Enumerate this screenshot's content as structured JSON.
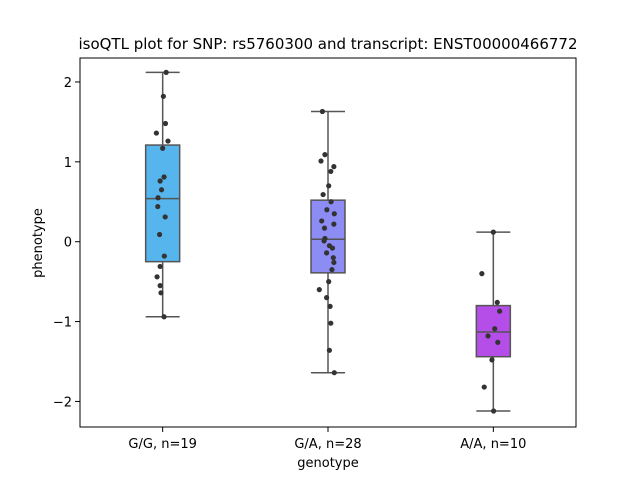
{
  "chart_data": {
    "type": "box",
    "title": "isoQTL plot for SNP: rs5760300 and transcript: ENST00000466772",
    "xlabel": "genotype",
    "ylabel": "phenotype",
    "ylim": [
      -2.32,
      2.3
    ],
    "yticks": [
      2,
      1,
      0,
      -1,
      -2
    ],
    "ytick_labels": [
      "2",
      "1",
      "0",
      "−1",
      "−2"
    ],
    "categories": [
      "G/G, n=19",
      "G/A, n=28",
      "A/A, n=10"
    ],
    "boxes": [
      {
        "label": "G/G, n=19",
        "color": "#55b5ec",
        "whisker_low": -0.94,
        "q1": -0.25,
        "median": 0.54,
        "q3": 1.21,
        "whisker_high": 2.12,
        "points": [
          {
            "y": 2.12,
            "j": 0.25
          },
          {
            "y": 1.82,
            "j": 0.05
          },
          {
            "y": 1.48,
            "j": 0.2
          },
          {
            "y": 1.36,
            "j": -0.45
          },
          {
            "y": 1.26,
            "j": 0.38
          },
          {
            "y": 1.17,
            "j": 0.0
          },
          {
            "y": 0.81,
            "j": 0.1
          },
          {
            "y": 0.76,
            "j": -0.18
          },
          {
            "y": 0.65,
            "j": -0.08
          },
          {
            "y": 0.55,
            "j": -0.33
          },
          {
            "y": 0.44,
            "j": -0.35
          },
          {
            "y": 0.31,
            "j": 0.18
          },
          {
            "y": 0.09,
            "j": -0.22
          },
          {
            "y": -0.18,
            "j": 0.12
          },
          {
            "y": -0.31,
            "j": -0.18
          },
          {
            "y": -0.44,
            "j": -0.4
          },
          {
            "y": -0.55,
            "j": -0.18
          },
          {
            "y": -0.64,
            "j": -0.12
          },
          {
            "y": -0.94,
            "j": 0.1
          }
        ]
      },
      {
        "label": "G/A, n=28",
        "color": "#8c8cf4",
        "whisker_low": -1.64,
        "q1": -0.39,
        "median": 0.03,
        "q3": 0.52,
        "whisker_high": 1.63,
        "points": [
          {
            "y": 1.63,
            "j": -0.4
          },
          {
            "y": 1.09,
            "j": -0.22
          },
          {
            "y": 1.01,
            "j": -0.5
          },
          {
            "y": 0.94,
            "j": 0.42
          },
          {
            "y": 0.88,
            "j": 0.2
          },
          {
            "y": 0.7,
            "j": 0.05
          },
          {
            "y": 0.59,
            "j": -0.35
          },
          {
            "y": 0.5,
            "j": 0.22
          },
          {
            "y": 0.4,
            "j": -0.08
          },
          {
            "y": 0.35,
            "j": 0.45
          },
          {
            "y": 0.26,
            "j": -0.45
          },
          {
            "y": 0.22,
            "j": 0.42
          },
          {
            "y": 0.17,
            "j": -0.25
          },
          {
            "y": 0.04,
            "j": -0.22
          },
          {
            "y": 0.01,
            "j": -0.28
          },
          {
            "y": -0.05,
            "j": 0.1
          },
          {
            "y": -0.08,
            "j": 0.32
          },
          {
            "y": -0.14,
            "j": -0.1
          },
          {
            "y": -0.2,
            "j": 0.38
          },
          {
            "y": -0.26,
            "j": 0.42
          },
          {
            "y": -0.35,
            "j": 0.28
          },
          {
            "y": -0.5,
            "j": 0.05
          },
          {
            "y": -0.6,
            "j": -0.62
          },
          {
            "y": -0.7,
            "j": -0.1
          },
          {
            "y": -0.81,
            "j": 0.15
          },
          {
            "y": -1.02,
            "j": 0.2
          },
          {
            "y": -1.36,
            "j": 0.1
          },
          {
            "y": -1.64,
            "j": 0.45
          }
        ]
      },
      {
        "label": "A/A, n=10",
        "color": "#b54de8",
        "whisker_low": -2.12,
        "q1": -1.44,
        "median": -1.13,
        "q3": -0.8,
        "whisker_high": 0.12,
        "points": [
          {
            "y": 0.12,
            "j": 0.0
          },
          {
            "y": -0.4,
            "j": -0.82
          },
          {
            "y": -0.76,
            "j": 0.28
          },
          {
            "y": -0.87,
            "j": 0.45
          },
          {
            "y": -1.09,
            "j": 0.1
          },
          {
            "y": -1.18,
            "j": -0.38
          },
          {
            "y": -1.26,
            "j": 0.32
          },
          {
            "y": -1.48,
            "j": -0.1
          },
          {
            "y": -1.82,
            "j": -0.65
          },
          {
            "y": -2.12,
            "j": 0.02
          }
        ]
      }
    ]
  }
}
